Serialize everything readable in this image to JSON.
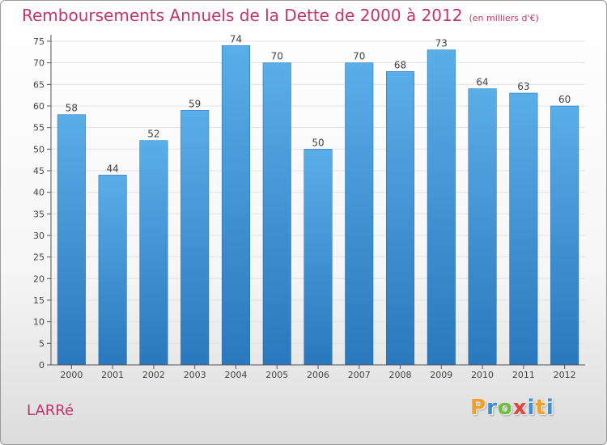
{
  "header": {
    "title": "Remboursements Annuels de la Dette de 2000 à 2012",
    "unit": "(en milliers d'€)"
  },
  "footer": {
    "commune": "LARRé",
    "logo_letters": [
      "P",
      "r",
      "o",
      "x",
      "i",
      "t",
      "i"
    ],
    "logo_colors": [
      "#f0a02a",
      "#3a8fd6",
      "#6cbf3a",
      "#e0443a",
      "#3a8fd6",
      "#f0a02a",
      "#3a8fd6"
    ]
  },
  "colors": {
    "bar_light": "#5aaee8",
    "bar_dark": "#2a78bd",
    "title": "#c0356b"
  },
  "chart_data": {
    "type": "bar",
    "categories": [
      "2000",
      "2001",
      "2002",
      "2003",
      "2004",
      "2005",
      "2006",
      "2007",
      "2008",
      "2009",
      "2010",
      "2011",
      "2012"
    ],
    "values": [
      58,
      44,
      52,
      59,
      74,
      70,
      50,
      70,
      68,
      73,
      64,
      63,
      60
    ],
    "title": "Remboursements Annuels de la Dette de 2000 à 2012",
    "ylim": [
      0,
      75
    ],
    "yticks": [
      0,
      5,
      10,
      15,
      20,
      25,
      30,
      35,
      40,
      45,
      50,
      55,
      60,
      65,
      70,
      75
    ],
    "grid": true,
    "legend": "none"
  }
}
